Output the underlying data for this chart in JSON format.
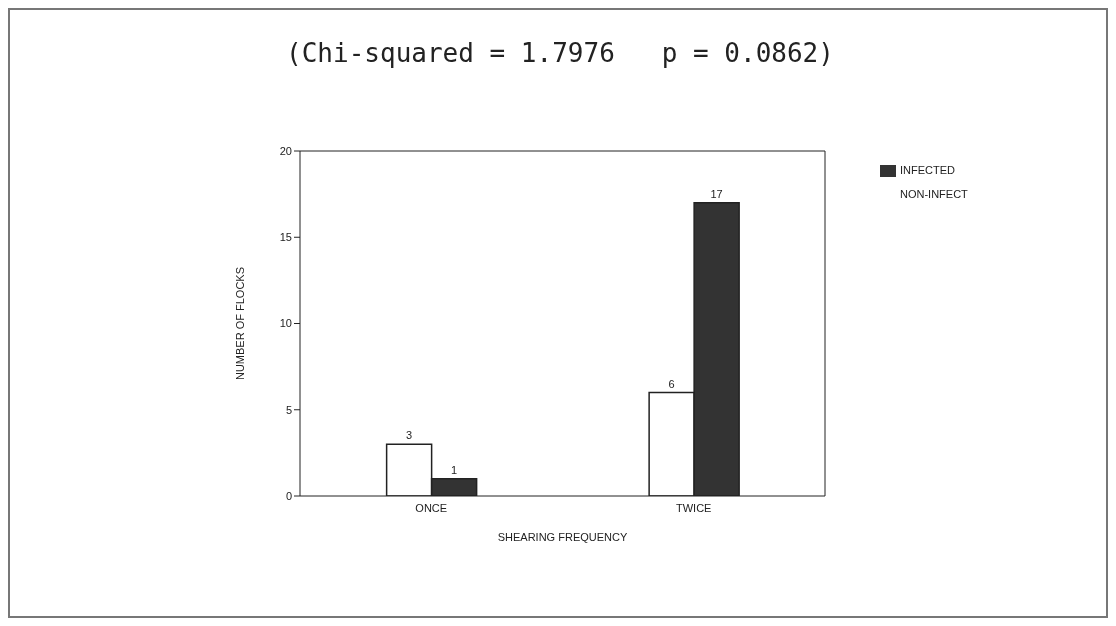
{
  "chart_data": {
    "type": "bar",
    "title": "(Chi-squared = 1.7976   p = 0.0862)",
    "xlabel": "SHEARING FREQUENCY",
    "ylabel": "NUMBER OF FLOCKS",
    "categories": [
      "ONCE",
      "TWICE"
    ],
    "series": [
      {
        "name": "NON-INFECT",
        "color": "#ffffff",
        "values": [
          3,
          6
        ]
      },
      {
        "name": "INFECTED",
        "color": "#333333",
        "values": [
          1,
          17
        ]
      }
    ],
    "ylim": [
      0,
      20
    ],
    "yticks": [
      0,
      5,
      10,
      15,
      20
    ],
    "legend": "top right",
    "data_labels": true
  }
}
